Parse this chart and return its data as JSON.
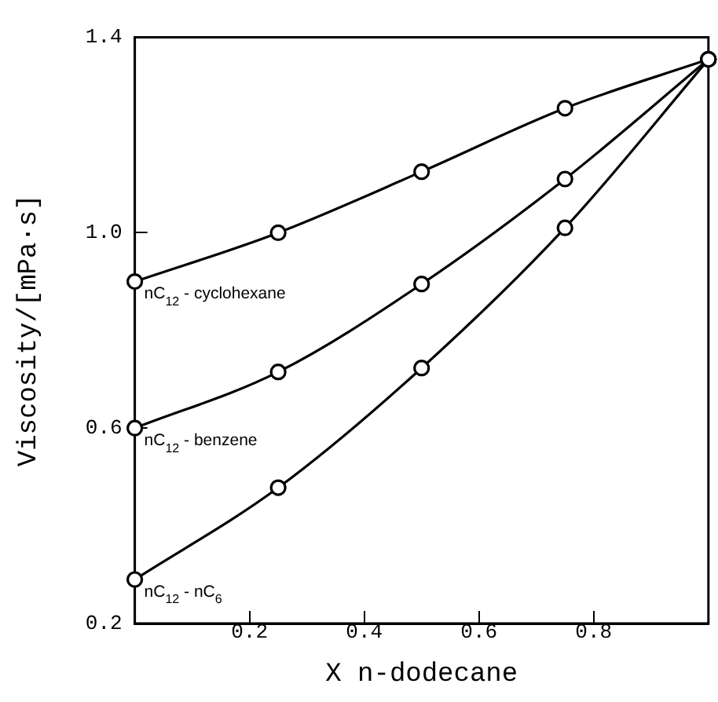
{
  "chart_data": {
    "type": "line",
    "xlabel": "X n-dodecane",
    "ylabel": "Viscosity/[mPa·s]",
    "xlim": [
      0,
      1
    ],
    "xticks": [
      0.2,
      0.4,
      0.6,
      0.8
    ],
    "ylim": [
      0.2,
      1.4
    ],
    "yticks": [
      0.2,
      0.6,
      {
        "value": 1,
        "label": "1.0"
      },
      1.4
    ],
    "x": [
      0,
      0.25,
      0.5,
      0.75,
      1
    ],
    "grid": false,
    "legend": false,
    "marker": "circle",
    "line_style": "solid",
    "series": [
      {
        "name": "nC$_{12}$ - cyclohexane",
        "color": "#000000",
        "values": [
          0.9,
          1.0,
          1.125,
          1.255,
          1.355
        ]
      },
      {
        "name": "nC$_{12}$ - benzene",
        "color": "#000000",
        "values": [
          0.6,
          0.715,
          0.895,
          1.11,
          1.355
        ]
      },
      {
        "name": "nC$_{12}$ - nC$_{6}$",
        "color": "#000000",
        "values": [
          0.29,
          0.478,
          0.723,
          1.01,
          1.355
        ]
      }
    ]
  }
}
